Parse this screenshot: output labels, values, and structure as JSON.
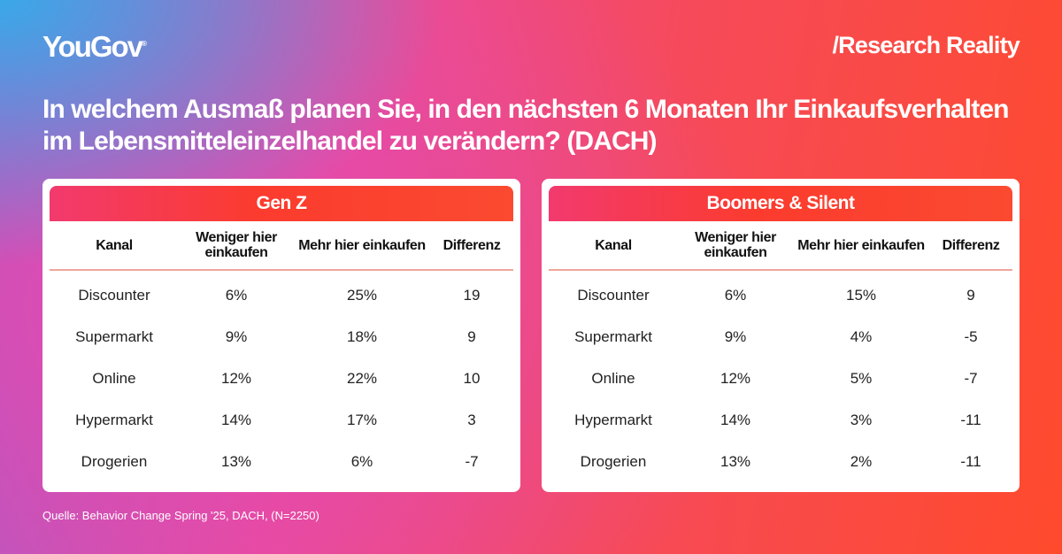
{
  "header": {
    "logo": "YouGov",
    "logo_mark": "®",
    "brand": "/Research Reality"
  },
  "title": "In welchem Ausmaß planen Sie, in den nächsten 6 Monaten Ihr Einkaufsverhalten im Lebensmitteleinzelhandel zu verändern? (DACH)",
  "source": "Quelle: Behavior Change Spring '25, DACH, (N=2250)",
  "colors": {
    "band_start": "#f23a6e",
    "band_end": "#fb3b2e"
  },
  "chart_data": {
    "type": "table",
    "columns": [
      "Kanal",
      "Weniger hier einkaufen",
      "Mehr hier einkaufen",
      "Differenz"
    ],
    "tables": [
      {
        "name": "Gen Z",
        "rows": [
          [
            "Discounter",
            "6%",
            "25%",
            "19"
          ],
          [
            "Supermarkt",
            "9%",
            "18%",
            "9"
          ],
          [
            "Online",
            "12%",
            "22%",
            "10"
          ],
          [
            "Hypermarkt",
            "14%",
            "17%",
            "3"
          ],
          [
            "Drogerien",
            "13%",
            "6%",
            "-7"
          ]
        ]
      },
      {
        "name": "Boomers & Silent",
        "rows": [
          [
            "Discounter",
            "6%",
            "15%",
            "9"
          ],
          [
            "Supermarkt",
            "9%",
            "4%",
            "-5"
          ],
          [
            "Online",
            "12%",
            "5%",
            "-7"
          ],
          [
            "Hypermarkt",
            "14%",
            "3%",
            "-11"
          ],
          [
            "Drogerien",
            "13%",
            "2%",
            "-11"
          ]
        ]
      }
    ]
  }
}
